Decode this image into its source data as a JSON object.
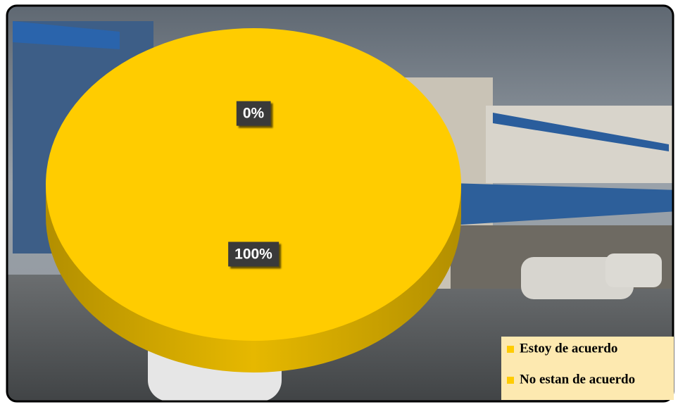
{
  "chart_data": {
    "type": "pie3d",
    "categories": [
      "Estoy de acuerdo",
      "No estan de acuerdo"
    ],
    "values": [
      100,
      0
    ],
    "value_labels": [
      "100%",
      "0%"
    ],
    "colors": [
      "#ffcc00",
      "#ffcc00"
    ],
    "legend": "bottom-right"
  }
}
